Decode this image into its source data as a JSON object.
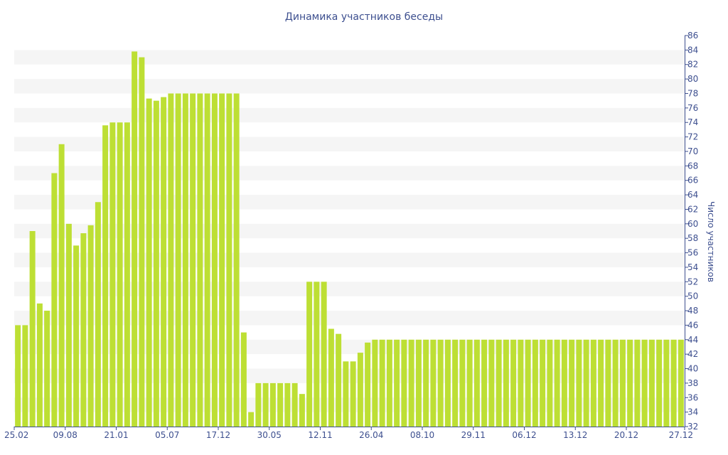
{
  "chart_data": {
    "type": "bar",
    "title": "Динамика участников беседы",
    "ylabel": "Число участников",
    "xlabel": "",
    "ylim": [
      32,
      86
    ],
    "y_ticks": [
      32,
      34,
      36,
      38,
      40,
      42,
      44,
      46,
      48,
      50,
      52,
      54,
      56,
      58,
      60,
      62,
      64,
      66,
      68,
      70,
      72,
      74,
      76,
      78,
      80,
      82,
      84,
      86
    ],
    "y_axis_position": "right",
    "grid": "horizontal alternating bands",
    "x_tick_labels": [
      {
        "label": "25.02",
        "index": 0
      },
      {
        "label": "09.08",
        "index": 7
      },
      {
        "label": "21.01",
        "index": 14
      },
      {
        "label": "05.07",
        "index": 21
      },
      {
        "label": "17.12",
        "index": 28
      },
      {
        "label": "30.05",
        "index": 35
      },
      {
        "label": "12.11",
        "index": 42
      },
      {
        "label": "26.04",
        "index": 49
      },
      {
        "label": "08.10",
        "index": 56
      },
      {
        "label": "29.11",
        "index": 63
      },
      {
        "label": "06.12",
        "index": 70
      },
      {
        "label": "13.12",
        "index": 77
      },
      {
        "label": "20.12",
        "index": 84
      },
      {
        "label": "27.12",
        "index": 91
      }
    ],
    "values": [
      46,
      46,
      59,
      49,
      48,
      67,
      71,
      60,
      57,
      58.7,
      59.8,
      63,
      73.6,
      74,
      74,
      74,
      83.8,
      83,
      77.3,
      77,
      77.5,
      78,
      78,
      78,
      78,
      78,
      78,
      78,
      78,
      78,
      78,
      45,
      34,
      38,
      38,
      38,
      38,
      38,
      38,
      36.5,
      52,
      52,
      52,
      45.5,
      44.8,
      41,
      41,
      42.2,
      43.6,
      44,
      44,
      44,
      44,
      44,
      44,
      44,
      44,
      44,
      44,
      44,
      44,
      44,
      44,
      44,
      44,
      44,
      44,
      44,
      44,
      44,
      44,
      44,
      44,
      44,
      44,
      44,
      44,
      44,
      44,
      44,
      44,
      44,
      44,
      44,
      44,
      44,
      44,
      44,
      44,
      44,
      44,
      44
    ],
    "colors": {
      "bar": "#bddf34",
      "band": "#f5f5f5",
      "text": "#3d4f8f",
      "axis": "#3d4f8f"
    }
  }
}
